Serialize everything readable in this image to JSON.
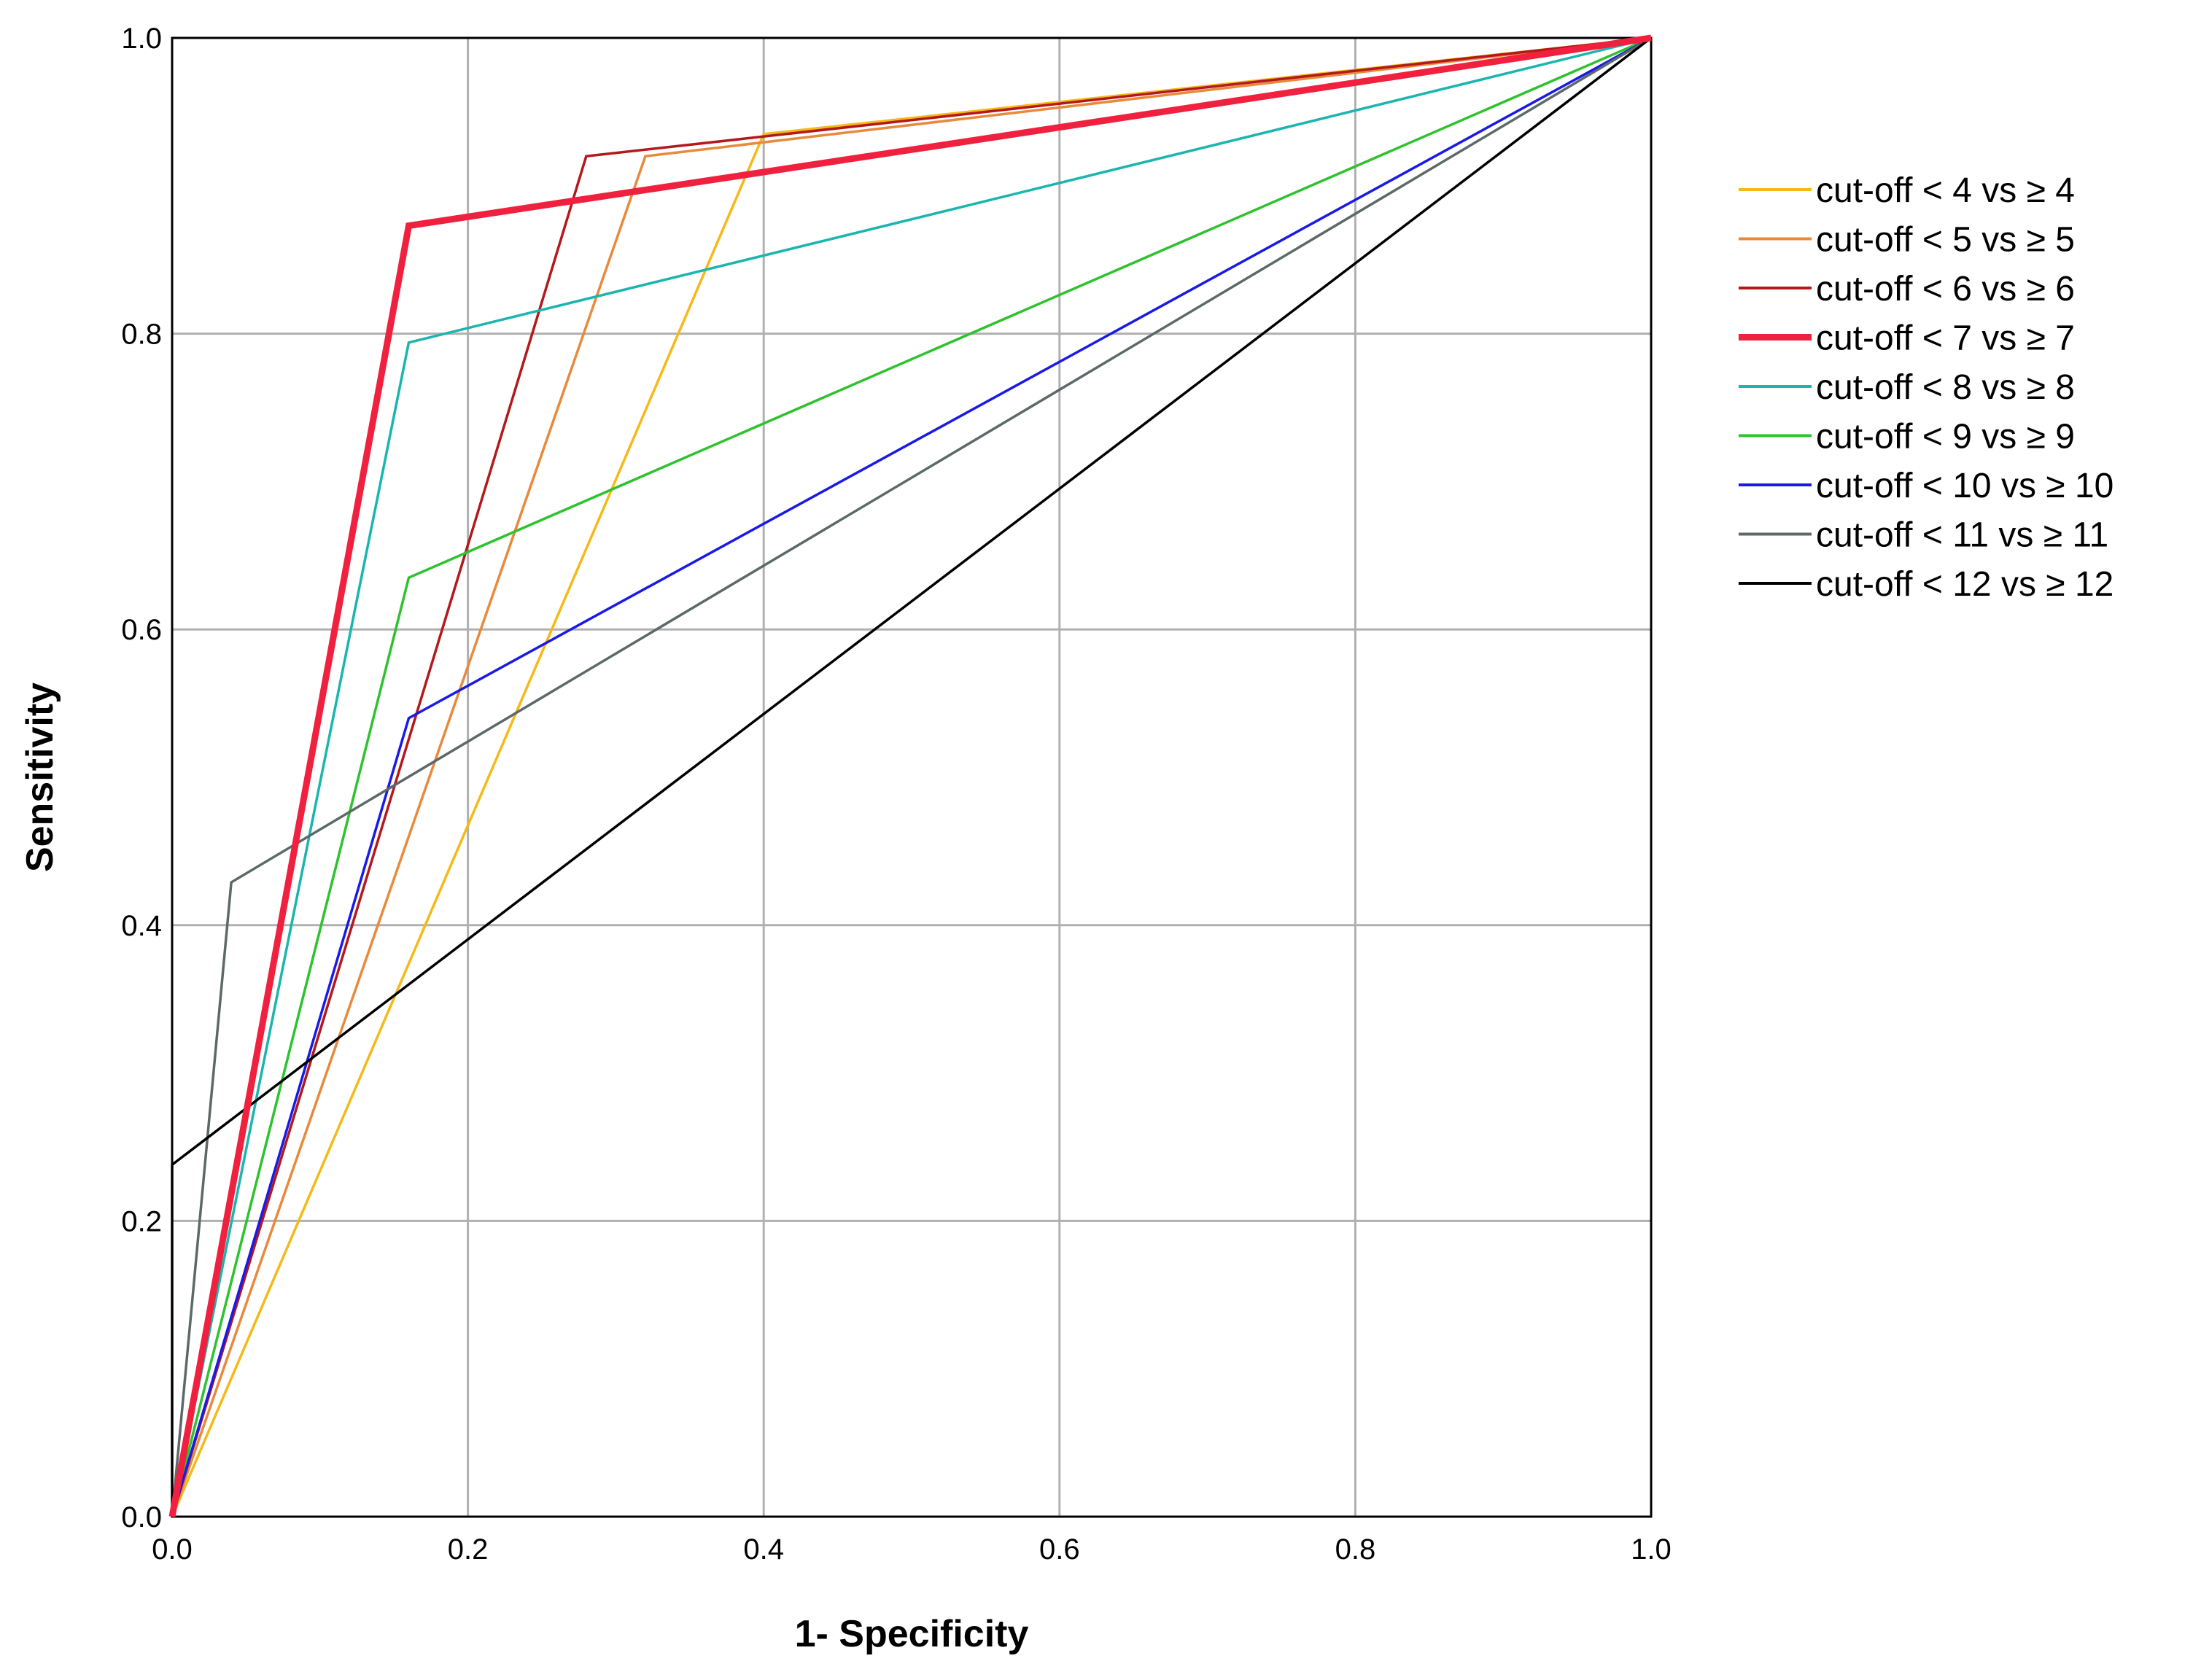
{
  "chart_data": {
    "type": "line",
    "title": "",
    "xlabel": "1- Specificity",
    "ylabel": "Sensitivity",
    "xlim": [
      0,
      1
    ],
    "ylim": [
      0,
      1
    ],
    "grid": true,
    "legend_position": "right",
    "x_ticks": [
      "0.0",
      "0.2",
      "0.4",
      "0.6",
      "0.8",
      "1.0"
    ],
    "y_ticks": [
      "0.0",
      "0.2",
      "0.4",
      "0.6",
      "0.8",
      "1.0"
    ],
    "series": [
      {
        "name": "cut-off < 4 vs ≥ 4",
        "color": "#f5b918",
        "emphasis": false,
        "points": [
          [
            0,
            0
          ],
          [
            0.4,
            0.935
          ],
          [
            1,
            1
          ]
        ]
      },
      {
        "name": "cut-off < 5 vs ≥ 5",
        "color": "#e88a3c",
        "emphasis": false,
        "points": [
          [
            0,
            0
          ],
          [
            0.32,
            0.92
          ],
          [
            1,
            1
          ]
        ]
      },
      {
        "name": "cut-off < 6 vs ≥ 6",
        "color": "#b3191c",
        "emphasis": false,
        "points": [
          [
            0,
            0
          ],
          [
            0.28,
            0.92
          ],
          [
            1,
            1
          ]
        ]
      },
      {
        "name": "cut-off < 7 vs ≥ 7",
        "color": "#f0203f",
        "emphasis": true,
        "points": [
          [
            0,
            0
          ],
          [
            0.16,
            0.873
          ],
          [
            1,
            1
          ]
        ]
      },
      {
        "name": "cut-off < 8 vs ≥ 8",
        "color": "#1ab5ae",
        "emphasis": false,
        "points": [
          [
            0,
            0
          ],
          [
            0.16,
            0.794
          ],
          [
            1,
            1
          ]
        ]
      },
      {
        "name": "cut-off < 9 vs ≥ 9",
        "color": "#2ec22e",
        "emphasis": false,
        "points": [
          [
            0,
            0
          ],
          [
            0.16,
            0.635
          ],
          [
            1,
            1
          ]
        ]
      },
      {
        "name": "cut-off < 10 vs ≥ 10",
        "color": "#1a1ae8",
        "emphasis": false,
        "points": [
          [
            0,
            0
          ],
          [
            0.16,
            0.54
          ],
          [
            1,
            1
          ]
        ]
      },
      {
        "name": "cut-off < 11 vs ≥ 11",
        "color": "#5d6968",
        "emphasis": false,
        "points": [
          [
            0,
            0
          ],
          [
            0.04,
            0.429
          ],
          [
            1,
            1
          ]
        ]
      },
      {
        "name": "cut-off < 12 vs ≥ 12",
        "color": "#000000",
        "emphasis": false,
        "points": [
          [
            0,
            0
          ],
          [
            0,
            0.238
          ],
          [
            1,
            1
          ]
        ]
      }
    ]
  }
}
